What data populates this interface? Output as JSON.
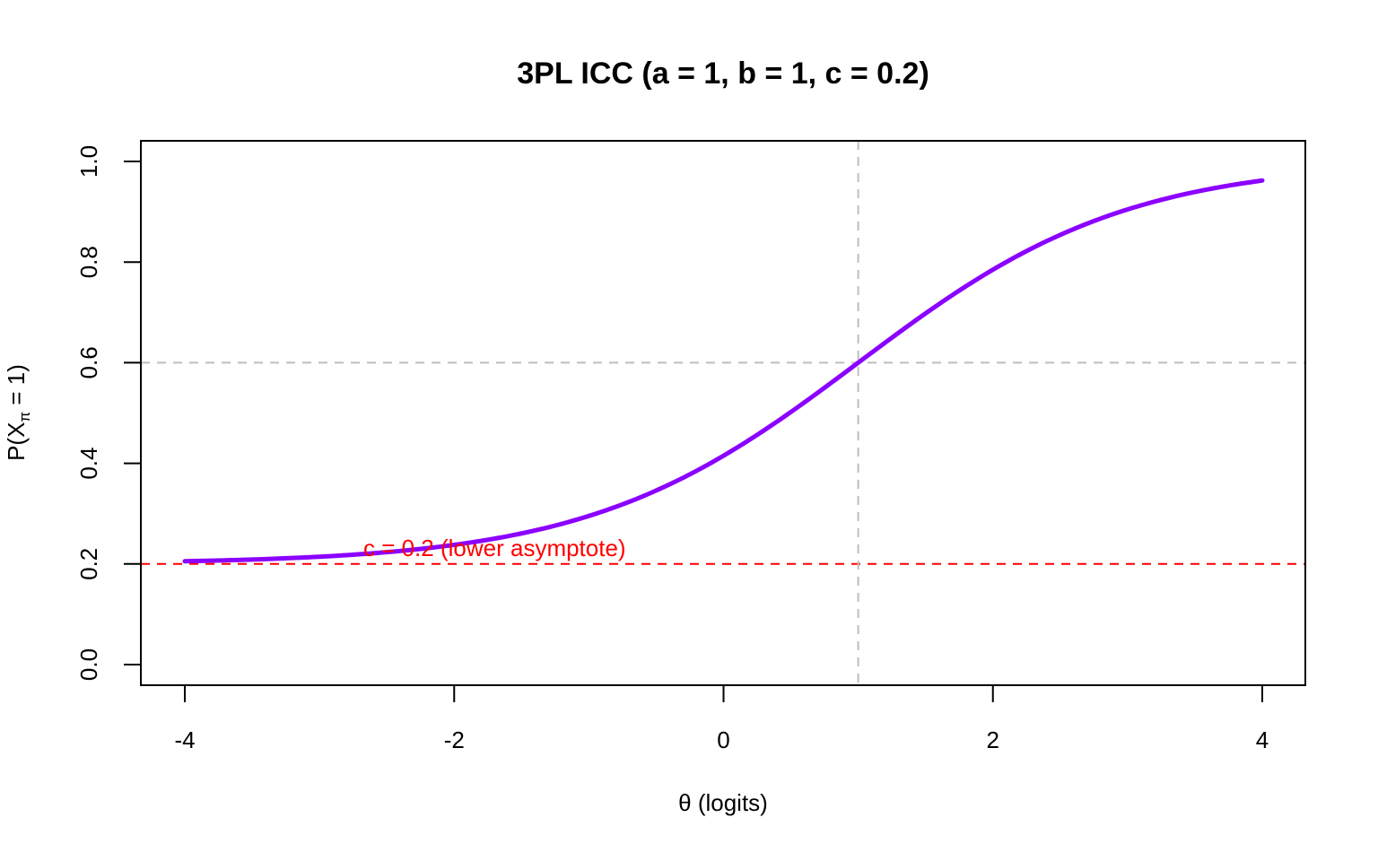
{
  "chart_data": {
    "type": "line",
    "title": "3PL ICC (a = 1, b = 1, c = 0.2)",
    "xlabel": "θ (logits)",
    "ylabel": {
      "prefix": "P(X",
      "subscript": "π",
      "suffix": " = 1)"
    },
    "xlim": [
      -4,
      4
    ],
    "ylim": [
      0,
      1
    ],
    "x_ticks": [
      -4,
      -2,
      0,
      2,
      4
    ],
    "x_tick_labels": [
      "-4",
      "-2",
      "0",
      "2",
      "4"
    ],
    "y_ticks": [
      0,
      0.2,
      0.4,
      0.6,
      0.8,
      1
    ],
    "y_tick_labels": [
      "0.0",
      "0.2",
      "0.4",
      "0.6",
      "0.8",
      "1.0"
    ],
    "series": [
      {
        "name": "ICC",
        "color": "#8B00FF",
        "x": [
          -4,
          -3.5,
          -3,
          -2.5,
          -2,
          -1.5,
          -1,
          -0.5,
          0,
          0.5,
          1,
          1.5,
          2,
          2.5,
          3,
          3.5,
          4
        ],
        "y": [
          0.205,
          0.209,
          0.214,
          0.224,
          0.238,
          0.262,
          0.298,
          0.348,
          0.415,
          0.502,
          0.6,
          0.698,
          0.785,
          0.852,
          0.902,
          0.936,
          0.961
        ]
      }
    ],
    "reference_lines": [
      {
        "orientation": "horizontal",
        "value": 0.2,
        "color": "#FF0000",
        "style": "dashed"
      },
      {
        "orientation": "horizontal",
        "value": 0.6,
        "color": "#BEBEBE",
        "style": "dashed"
      },
      {
        "orientation": "vertical",
        "value": 1,
        "color": "#BEBEBE",
        "style": "dashed"
      }
    ],
    "annotation": {
      "text": "c = 0.2 (lower asymptote)",
      "x": -1.7,
      "y": 0.2,
      "color": "#FF0000"
    }
  }
}
